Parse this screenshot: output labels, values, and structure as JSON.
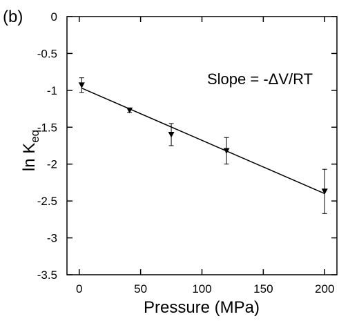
{
  "panel_label": "(b)",
  "chart_data": {
    "type": "scatter",
    "xlabel": "Pressure (MPa)",
    "ylabel_main": "ln K",
    "ylabel_sub": "eq",
    "annotation": "Slope = -ΔV/RT",
    "xlim": [
      -10,
      210
    ],
    "ylim": [
      -3.5,
      0
    ],
    "xticks": [
      0,
      50,
      100,
      150,
      200
    ],
    "xtick_labels": [
      "0",
      "50",
      "100",
      "150",
      "200"
    ],
    "yticks": [
      0,
      -0.5,
      -1,
      -1.5,
      -2,
      -2.5,
      -3,
      -3.5
    ],
    "ytick_labels": [
      "0",
      "-0.5",
      "-1",
      "-1.5",
      "-2",
      "-2.5",
      "-3",
      "-3.5"
    ],
    "points": [
      {
        "x": 2,
        "y": -0.93,
        "err": 0.1
      },
      {
        "x": 41,
        "y": -1.27,
        "err": 0.03
      },
      {
        "x": 75,
        "y": -1.6,
        "err": 0.15
      },
      {
        "x": 120,
        "y": -1.82,
        "err": 0.18
      },
      {
        "x": 200,
        "y": -2.37,
        "err": 0.3
      }
    ],
    "fit_line": {
      "x": [
        2,
        200
      ],
      "y": [
        -0.97,
        -2.4
      ]
    },
    "grid": false,
    "marker": "triangle-down"
  }
}
